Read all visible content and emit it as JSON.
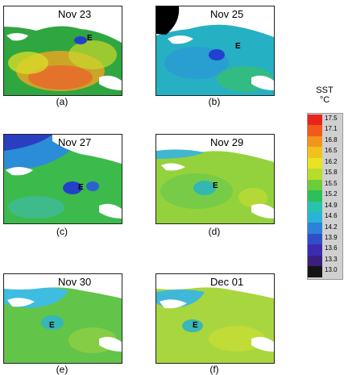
{
  "panels": [
    {
      "date": "Nov 23",
      "caption": "(a)",
      "marker": "E",
      "base_color": "#2aa63e",
      "accent": "#e96a1a"
    },
    {
      "date": "Nov 25",
      "caption": "(b)",
      "marker": "E",
      "base_color": "#1fb5c2",
      "accent": "#1d4fd8"
    },
    {
      "date": "Nov 27",
      "caption": "(c)",
      "marker": "E",
      "base_color": "#39b94b",
      "accent": "#2741c9"
    },
    {
      "date": "Nov 29",
      "caption": "(d)",
      "marker": "E",
      "base_color": "#8fd13a",
      "accent": "#2cbad0"
    },
    {
      "date": "Nov 30",
      "caption": "(e)",
      "marker": "E",
      "base_color": "#5fc34a",
      "accent": "#2cbad0"
    },
    {
      "date": "Dec 01",
      "caption": "(f)",
      "marker": "E",
      "base_color": "#a6d83b",
      "accent": "#2cbad0"
    }
  ],
  "colorbar": {
    "title": "SST",
    "unit": "°C",
    "ticks": [
      "17.5",
      "17.1",
      "16.8",
      "16.5",
      "16.2",
      "15.8",
      "15.5",
      "15.2",
      "14.9",
      "14.6",
      "14.2",
      "13.9",
      "13.6",
      "13.3",
      "13.0"
    ],
    "colors": [
      "#e8241a",
      "#f05a1a",
      "#f3951b",
      "#f1c21d",
      "#e8e423",
      "#b7dd2c",
      "#6ccc3a",
      "#2cbf5a",
      "#29c2ad",
      "#2ab3d9",
      "#2c82d9",
      "#2f4fc9",
      "#3b2bb0",
      "#3a1f7e",
      "#151515"
    ]
  }
}
